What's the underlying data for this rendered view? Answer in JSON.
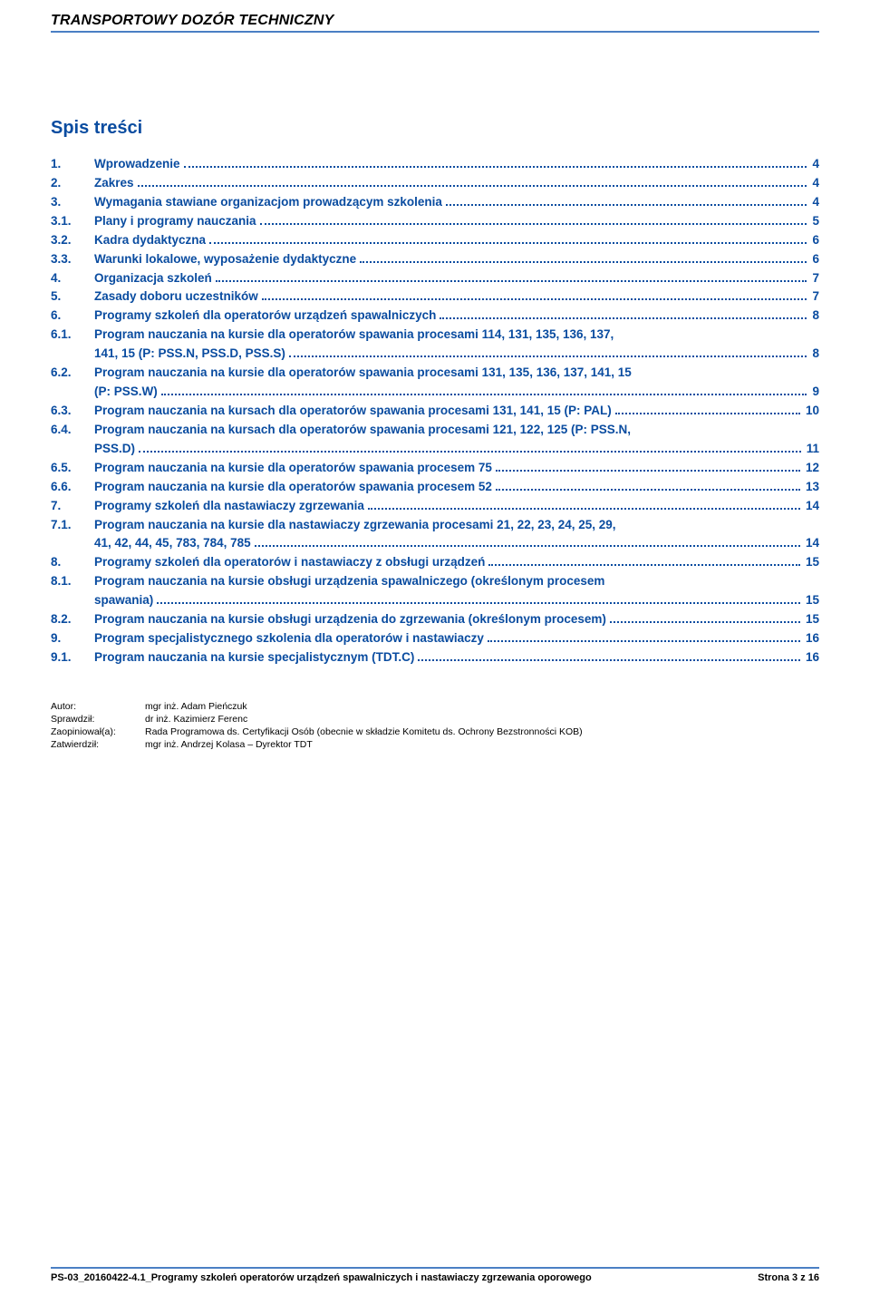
{
  "header": {
    "title": "TRANSPORTOWY DOZÓR TECHNICZNY",
    "rule_color": "#4a7fc4"
  },
  "toc": {
    "title": "Spis treści",
    "title_color": "#0a4ca0",
    "entry_color": "#0a4ca0",
    "font_size_pt": 13.5,
    "entries": [
      {
        "num": "1.",
        "label": "Wprowadzenie",
        "page": "4"
      },
      {
        "num": "2.",
        "label": "Zakres",
        "page": "4"
      },
      {
        "num": "3.",
        "label": "Wymagania stawiane organizacjom prowadzącym szkolenia",
        "page": "4"
      },
      {
        "num": "3.1.",
        "label": "Plany i programy nauczania",
        "page": "5"
      },
      {
        "num": "3.2.",
        "label": "Kadra dydaktyczna",
        "page": "6"
      },
      {
        "num": "3.3.",
        "label": "Warunki lokalowe, wyposażenie dydaktyczne",
        "page": "6"
      },
      {
        "num": "4.",
        "label": "Organizacja szkoleń",
        "page": "7"
      },
      {
        "num": "5.",
        "label": "Zasady doboru uczestników",
        "page": "7"
      },
      {
        "num": "6.",
        "label": "Programy szkoleń dla operatorów urządzeń spawalniczych",
        "page": "8"
      },
      {
        "num": "6.1.",
        "label": "Program nauczania na kursie dla operatorów spawania procesami 114, 131, 135, 136, 137,",
        "cont": "141, 15 (P: PSS.N, PSS.D, PSS.S)",
        "page": "8"
      },
      {
        "num": "6.2.",
        "label": "Program nauczania na kursie dla operatorów spawania procesami 131, 135, 136, 137, 141, 15",
        "cont": "(P: PSS.W)",
        "page": "9"
      },
      {
        "num": "6.3.",
        "label": "Program nauczania na kursach dla operatorów spawania procesami 131, 141, 15 (P: PAL)",
        "page": "10"
      },
      {
        "num": "6.4.",
        "label": "Program nauczania na kursach dla operatorów spawania procesami 121, 122, 125 (P: PSS.N,",
        "cont": "PSS.D)",
        "page": "11"
      },
      {
        "num": "6.5.",
        "label": "Program nauczania na kursie dla operatorów spawania procesem 75",
        "page": "12"
      },
      {
        "num": "6.6.",
        "label": "Program nauczania na kursie dla operatorów spawania procesem 52",
        "page": "13"
      },
      {
        "num": "7.",
        "label": "Programy szkoleń dla nastawiaczy zgrzewania",
        "page": "14"
      },
      {
        "num": "7.1.",
        "label": "Program nauczania na kursie dla nastawiaczy zgrzewania procesami 21, 22, 23, 24, 25, 29,",
        "cont": "41, 42, 44, 45, 783, 784, 785",
        "page": "14"
      },
      {
        "num": "8.",
        "label": "Programy szkoleń dla operatorów i nastawiaczy z obsługi urządzeń",
        "page": "15"
      },
      {
        "num": "8.1.",
        "label": "Program nauczania na kursie obsługi urządzenia spawalniczego (określonym procesem",
        "cont": "spawania)",
        "page": "15"
      },
      {
        "num": "8.2.",
        "label": "Program nauczania na kursie obsługi urządzenia do zgrzewania (określonym procesem)",
        "page": "15"
      },
      {
        "num": "9.",
        "label": "Program specjalistycznego szkolenia dla operatorów i nastawiaczy",
        "page": "16"
      },
      {
        "num": "9.1.",
        "label": "Program nauczania na kursie specjalistycznym (TDT.C)",
        "page": "16"
      }
    ]
  },
  "authors": {
    "rows": [
      {
        "key": "Autor:",
        "val": "mgr inż. Adam Pieńczuk"
      },
      {
        "key": "Sprawdził:",
        "val": "dr inż. Kazimierz Ferenc"
      },
      {
        "key": "Zaopiniował(a):",
        "val": "Rada Programowa ds. Certyfikacji Osób (obecnie w składzie Komitetu ds. Ochrony Bezstronności KOB)"
      },
      {
        "key": "Zatwierdził:",
        "val": "mgr inż. Andrzej Kolasa – Dyrektor TDT"
      }
    ],
    "font_size_pt": 10.5
  },
  "footer": {
    "left": "PS-03_20160422-4.1_Programy szkoleń operatorów urządzeń spawalniczych i nastawiaczy zgrzewania oporowego",
    "right": "Strona 3 z 16",
    "rule_color": "#4a7fc4",
    "font_size_pt": 11
  },
  "colors": {
    "background": "#ffffff",
    "text": "#000000",
    "accent_blue": "#0a4ca0",
    "rule_blue": "#4a7fc4"
  }
}
